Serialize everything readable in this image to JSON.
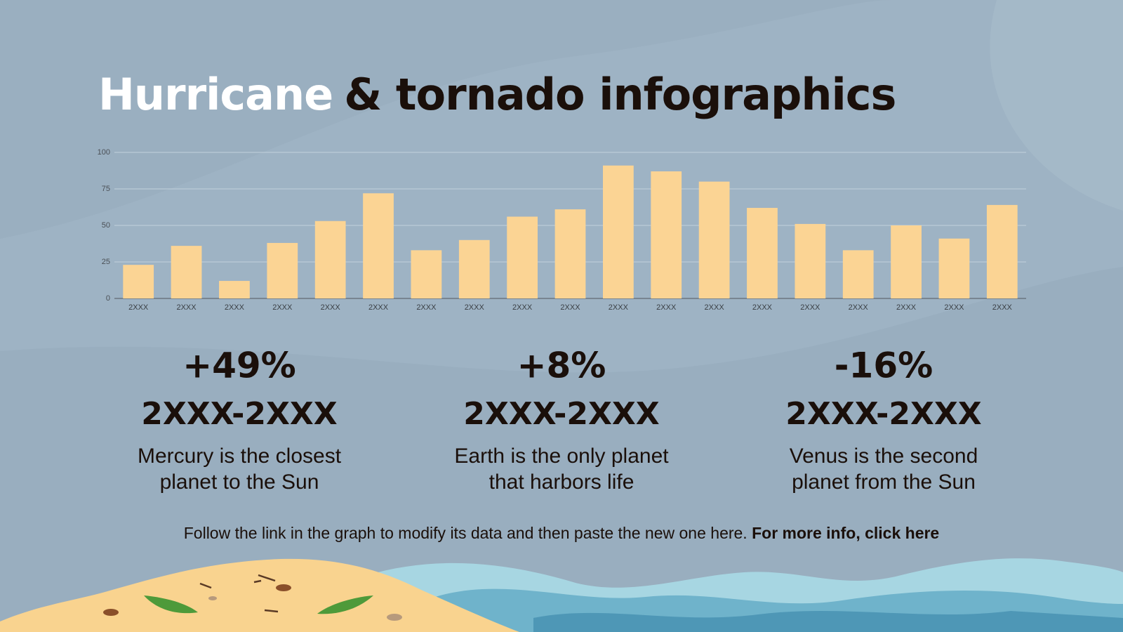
{
  "title_parts": [
    "Hurricane",
    "& tornado infographics"
  ],
  "chart_data": {
    "type": "bar",
    "color": "#fbd494",
    "grid": true,
    "categories": [
      "2XXX",
      "2XXX",
      "2XXX",
      "2XXX",
      "2XXX",
      "2XXX",
      "2XXX",
      "2XXX",
      "2XXX",
      "2XXX",
      "2XXX",
      "2XXX",
      "2XXX",
      "2XXX",
      "2XXX",
      "2XXX",
      "2XXX",
      "2XXX",
      "2XXX"
    ],
    "values": [
      23,
      36,
      12,
      38,
      53,
      72,
      33,
      40,
      56,
      61,
      91,
      87,
      80,
      62,
      51,
      33,
      50,
      41,
      64
    ],
    "ylim": [
      0,
      100
    ],
    "yticks": [
      0,
      25,
      50,
      75,
      100
    ]
  },
  "stats": [
    {
      "change": "+49%",
      "range": "2XXX-2XXX",
      "lines": [
        "Mercury is the closest",
        "planet to the Sun"
      ]
    },
    {
      "change": "+8%",
      "range": "2XXX-2XXX",
      "lines": [
        "Earth is the only planet",
        "that harbors life"
      ]
    },
    {
      "change": "-16%",
      "range": "2XXX-2XXX",
      "lines": [
        "Venus is the second",
        "planet from the Sun"
      ]
    }
  ],
  "footer": {
    "text": "Follow the link in the graph to modify its data and then paste the new one here. ",
    "link": "For more info, click here"
  }
}
